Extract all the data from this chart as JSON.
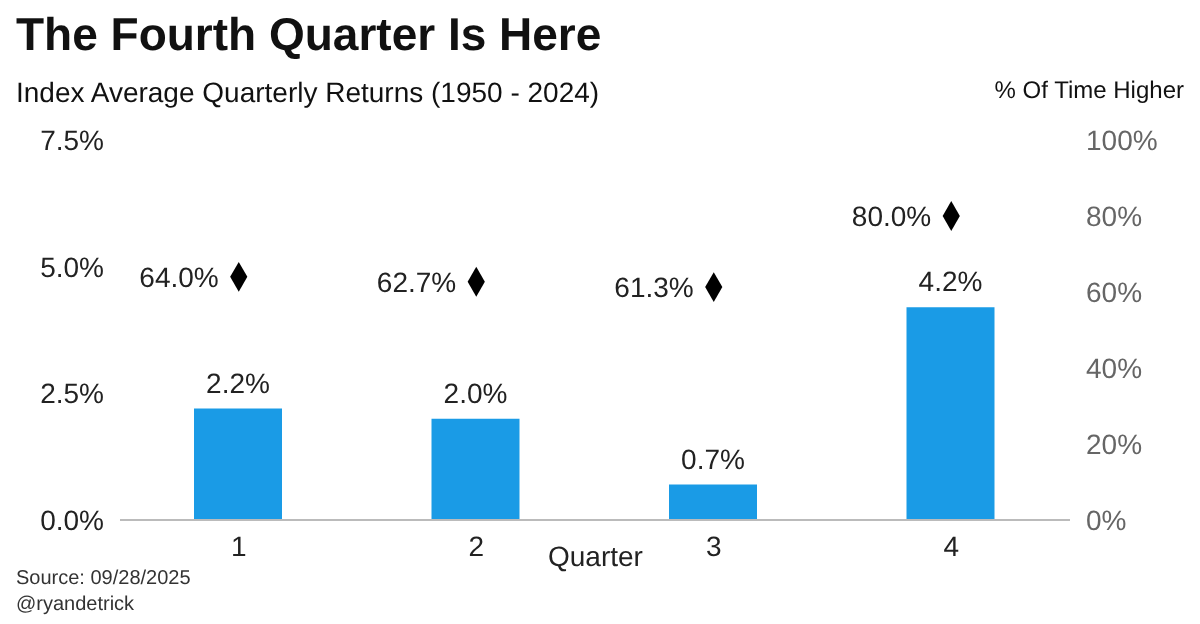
{
  "chart_data": {
    "type": "bar",
    "title": "The Fourth Quarter Is Here",
    "subtitle": "Index Average Quarterly Returns (1950 - 2024)",
    "xlabel": "Quarter",
    "y2label": "% Of Time Higher",
    "categories": [
      "1",
      "2",
      "3",
      "4"
    ],
    "series": [
      {
        "color": "#1a9be6",
        "values": [
          2.2,
          2.0,
          0.7,
          4.2
        ],
        "value_labels": [
          "2.2%",
          "2.0%",
          "0.7%",
          "4.2%"
        ]
      },
      {
        "type": "scatter",
        "axis": "y2",
        "color": "#000000",
        "values": [
          64.0,
          62.7,
          61.3,
          80.0
        ],
        "value_labels": [
          "64.0%",
          "62.7%",
          "61.3%",
          "80.0%"
        ]
      }
    ],
    "marker": "diamond",
    "ylim": [
      0,
      7.5
    ],
    "yticks": [
      {
        "value": 0,
        "label": "0.0%"
      },
      {
        "value": 2.5,
        "label": "2.5%"
      },
      {
        "value": 5,
        "label": "5.0%"
      },
      {
        "value": 7.5,
        "label": "7.5%"
      }
    ],
    "y2lim": [
      0,
      100
    ],
    "y2ticks": [
      {
        "value": 0,
        "label": "0%"
      },
      {
        "value": 20,
        "label": "20%"
      },
      {
        "value": 40,
        "label": "40%"
      },
      {
        "value": 60,
        "label": "60%"
      },
      {
        "value": 80,
        "label": "80%"
      },
      {
        "value": 100,
        "label": "100%"
      }
    ],
    "grid": false,
    "legend": false,
    "annotations": [
      "Source: 09/28/2025",
      "@ryandetrick"
    ]
  }
}
